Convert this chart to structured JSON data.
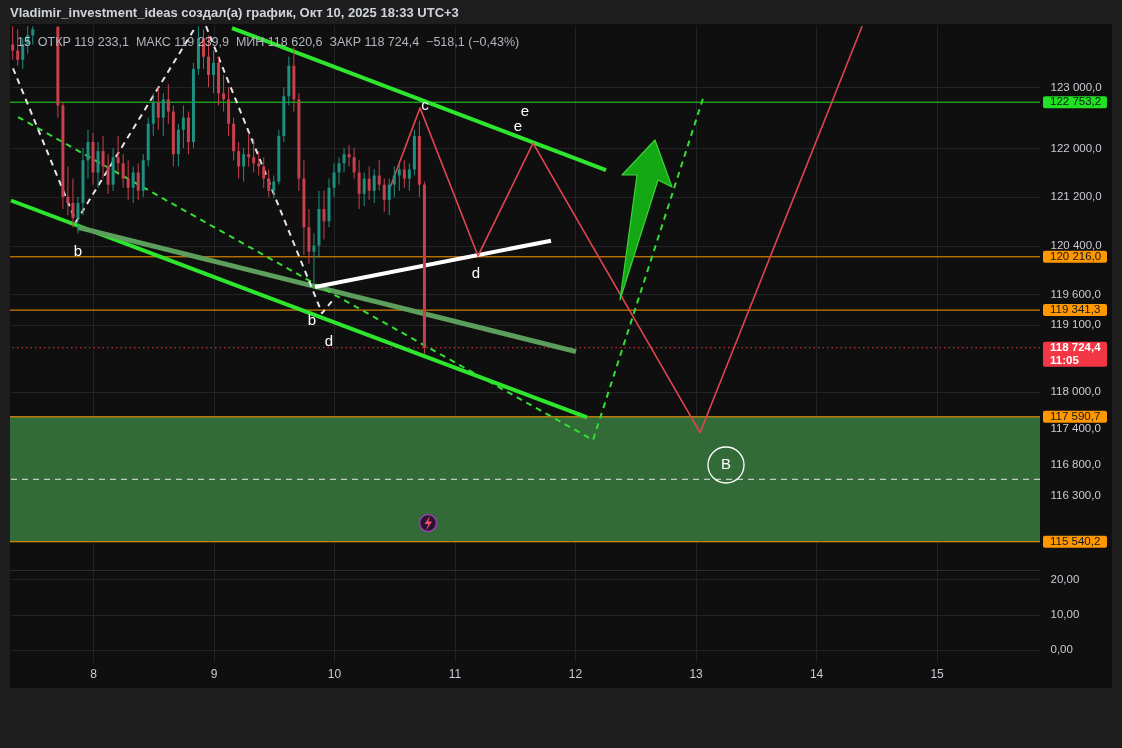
{
  "chart_data": [
    {
      "type": "candlestick",
      "title": "Vladimir_investment_ideas создал(а) график, Окт 10, 2025 18:33 UTC+3",
      "subtitle": "15  ОТКР 119 233,1  МАКС 119 239,9  МИН 118 620,6  ЗАКР 118 724,4  −518,1 (−0,43%)",
      "x": [
        "2025-10-07T08:00",
        "2025-10-07T09:00",
        "2025-10-07T10:00",
        "2025-10-07T11:00",
        "2025-10-07T12:00",
        "2025-10-07T17:00",
        "2025-10-07T18:00",
        "2025-10-07T19:00",
        "2025-10-07T20:00",
        "2025-10-07T21:00",
        "2025-10-07T22:00",
        "2025-10-07T23:00",
        "2025-10-08T00:00",
        "2025-10-08T01:00",
        "2025-10-08T02:00",
        "2025-10-08T03:00",
        "2025-10-08T04:00",
        "2025-10-08T05:00",
        "2025-10-08T06:00",
        "2025-10-08T07:00",
        "2025-10-08T08:00",
        "2025-10-08T09:00",
        "2025-10-08T10:00",
        "2025-10-08T11:00",
        "2025-10-08T12:00",
        "2025-10-08T13:00",
        "2025-10-08T14:00",
        "2025-10-08T15:00",
        "2025-10-08T16:00",
        "2025-10-08T17:00",
        "2025-10-08T18:00",
        "2025-10-08T19:00",
        "2025-10-08T20:00",
        "2025-10-08T21:00",
        "2025-10-08T22:00",
        "2025-10-08T23:00",
        "2025-10-09T00:00",
        "2025-10-09T01:00",
        "2025-10-09T02:00",
        "2025-10-09T03:00",
        "2025-10-09T04:00",
        "2025-10-09T05:00",
        "2025-10-09T06:00",
        "2025-10-09T07:00",
        "2025-10-09T08:00",
        "2025-10-09T09:00",
        "2025-10-09T10:00",
        "2025-10-09T11:00",
        "2025-10-09T12:00",
        "2025-10-09T13:00",
        "2025-10-09T14:00",
        "2025-10-09T15:00",
        "2025-10-09T16:00",
        "2025-10-09T17:00",
        "2025-10-09T18:00",
        "2025-10-09T19:00",
        "2025-10-09T20:00",
        "2025-10-09T21:00",
        "2025-10-09T22:00",
        "2025-10-09T23:00",
        "2025-10-10T00:00",
        "2025-10-10T01:00",
        "2025-10-10T02:00",
        "2025-10-10T03:00",
        "2025-10-10T04:00",
        "2025-10-10T05:00",
        "2025-10-10T06:00",
        "2025-10-10T07:00",
        "2025-10-10T08:00",
        "2025-10-10T09:00",
        "2025-10-10T10:00",
        "2025-10-10T11:00",
        "2025-10-10T12:00",
        "2025-10-10T13:00",
        "2025-10-10T14:00",
        "2025-10-10T15:00",
        "2025-10-10T16:00",
        "2025-10-10T17:00",
        "2025-10-10T18:00"
      ],
      "ohlc": [
        [
          123700,
          124000,
          123450,
          123600
        ],
        [
          123600,
          123950,
          123350,
          123450
        ],
        [
          123450,
          123800,
          123300,
          123700
        ],
        [
          123700,
          124000,
          123550,
          123850
        ],
        [
          123850,
          124000,
          123700,
          123950
        ],
        [
          123990,
          124000,
          122500,
          122700
        ],
        [
          122700,
          122750,
          121000,
          121200
        ],
        [
          121200,
          121700,
          120900,
          121100
        ],
        [
          121100,
          121500,
          120700,
          120850
        ],
        [
          120850,
          121200,
          120600,
          121100
        ],
        [
          121100,
          122000,
          120900,
          121800
        ],
        [
          121800,
          122300,
          121500,
          122100
        ],
        [
          122100,
          122250,
          121400,
          121600
        ],
        [
          121600,
          122100,
          121350,
          121950
        ],
        [
          121950,
          122200,
          121500,
          121700
        ],
        [
          121700,
          121900,
          121250,
          121400
        ],
        [
          121400,
          122000,
          121300,
          121850
        ],
        [
          121850,
          122200,
          121600,
          121750
        ],
        [
          121750,
          121900,
          121350,
          121500
        ],
        [
          121500,
          121800,
          121150,
          121350
        ],
        [
          121350,
          121700,
          121100,
          121600
        ],
        [
          121600,
          121750,
          121150,
          121300
        ],
        [
          121300,
          121900,
          121200,
          121800
        ],
        [
          121800,
          122500,
          121700,
          122400
        ],
        [
          122400,
          122900,
          122200,
          122750
        ],
        [
          122750,
          123000,
          122300,
          122500
        ],
        [
          122500,
          122900,
          122200,
          122800
        ],
        [
          122800,
          123050,
          122400,
          122600
        ],
        [
          122600,
          122700,
          121700,
          121900
        ],
        [
          121900,
          122400,
          121700,
          122300
        ],
        [
          122300,
          122700,
          122000,
          122500
        ],
        [
          122500,
          122600,
          121900,
          122100
        ],
        [
          122100,
          123400,
          122000,
          123300
        ],
        [
          123300,
          124000,
          123200,
          123800
        ],
        [
          123800,
          123950,
          123300,
          123500
        ],
        [
          123500,
          123850,
          123000,
          123200
        ],
        [
          123200,
          123600,
          122900,
          123400
        ],
        [
          123400,
          123500,
          122700,
          122900
        ],
        [
          122900,
          123200,
          122600,
          122800
        ],
        [
          122800,
          123000,
          122200,
          122400
        ],
        [
          122400,
          122500,
          121800,
          121950
        ],
        [
          121950,
          122100,
          121500,
          121700
        ],
        [
          121700,
          122000,
          121450,
          121900
        ],
        [
          121900,
          122250,
          121700,
          121850
        ],
        [
          121850,
          122150,
          121600,
          121750
        ],
        [
          121750,
          121950,
          121550,
          121700
        ],
        [
          121700,
          121850,
          121350,
          121500
        ],
        [
          121500,
          121650,
          121200,
          121300
        ],
        [
          121300,
          121550,
          121180,
          121450
        ],
        [
          121450,
          122300,
          121400,
          122200
        ],
        [
          122200,
          123000,
          122100,
          122850
        ],
        [
          122850,
          123500,
          122700,
          123350
        ],
        [
          123350,
          123650,
          122600,
          122800
        ],
        [
          122800,
          122900,
          121300,
          121500
        ],
        [
          121500,
          121800,
          120250,
          120700
        ],
        [
          120700,
          121000,
          120100,
          120300
        ],
        [
          120300,
          120600,
          119760,
          120400
        ],
        [
          120400,
          121300,
          120200,
          121000
        ],
        [
          121000,
          121300,
          120500,
          120800
        ],
        [
          120800,
          121500,
          120700,
          121350
        ],
        [
          121350,
          121750,
          121200,
          121600
        ],
        [
          121600,
          121850,
          121400,
          121750
        ],
        [
          121750,
          122000,
          121600,
          121900
        ],
        [
          121900,
          122050,
          121700,
          121850
        ],
        [
          121850,
          122000,
          121500,
          121600
        ],
        [
          121600,
          121800,
          121000,
          121250
        ],
        [
          121250,
          121600,
          121050,
          121500
        ],
        [
          121500,
          121700,
          121150,
          121300
        ],
        [
          121300,
          121650,
          121100,
          121550
        ],
        [
          121550,
          121800,
          121300,
          121400
        ],
        [
          121400,
          121500,
          120950,
          121150
        ],
        [
          121150,
          121500,
          120900,
          121400
        ],
        [
          121400,
          121700,
          121200,
          121550
        ],
        [
          121550,
          121750,
          121300,
          121650
        ],
        [
          121650,
          121800,
          121350,
          121500
        ],
        [
          121500,
          121750,
          121300,
          121650
        ],
        [
          121650,
          122300,
          121550,
          122200
        ],
        [
          122200,
          122450,
          121200,
          121400
        ],
        [
          121400,
          121450,
          118620.6,
          118724.4
        ]
      ],
      "colors": [
        "#c8404c",
        "#c8404c",
        "#1f8f80",
        "#1f8f80",
        "#1f8f80",
        "#c8404c",
        "#c8404c",
        "#c8404c",
        "#c8404c",
        "#1f8f80",
        "#1f8f80",
        "#1f8f80",
        "#c8404c",
        "#1f8f80",
        "#c8404c",
        "#c8404c",
        "#1f8f80",
        "#c8404c",
        "#c8404c",
        "#c8404c",
        "#1f8f80",
        "#c8404c",
        "#1f8f80",
        "#1f8f80",
        "#1f8f80",
        "#c8404c",
        "#1f8f80",
        "#c8404c",
        "#c8404c",
        "#1f8f80",
        "#1f8f80",
        "#c8404c",
        "#1f8f80",
        "#1f8f80",
        "#c8404c",
        "#c8404c",
        "#1f8f80",
        "#c8404c",
        "#c8404c",
        "#c8404c",
        "#c8404c",
        "#c8404c",
        "#1f8f80",
        "#c8404c",
        "#c8404c",
        "#c8404c",
        "#c8404c",
        "#c8404c",
        "#1f8f80",
        "#1f8f80",
        "#1f8f80",
        "#1f8f80",
        "#c8404c",
        "#c8404c",
        "#c8404c",
        "#c8404c",
        "#1f8f80",
        "#1f8f80",
        "#c8404c",
        "#1f8f80",
        "#1f8f80",
        "#1f8f80",
        "#1f8f80",
        "#c8404c",
        "#c8404c",
        "#c8404c",
        "#1f8f80",
        "#c8404c",
        "#1f8f80",
        "#c8404c",
        "#c8404c",
        "#1f8f80",
        "#1f8f80",
        "#1f8f80",
        "#c8404c",
        "#1f8f80",
        "#1f8f80",
        "#c8404c",
        "#c8404c"
      ],
      "series": [
        {
          "type": "line",
          "x": [
            "2025-10-09T03:41",
            "2025-10-12T06:10"
          ],
          "values": [
            123970,
            121640
          ],
          "color": "#2ee62e"
        },
        {
          "type": "line",
          "x": [
            "2025-10-07T07:40",
            "2025-10-12T02:23"
          ],
          "values": [
            121140,
            117580
          ],
          "color": "#2ee62e"
        },
        {
          "type": "line",
          "x": [
            "2025-10-07T21:01",
            "2025-10-12T00:12"
          ],
          "values": [
            120700,
            118660
          ],
          "color": "#5c9e5c"
        },
        {
          "type": "line",
          "x": [
            "2025-10-07T09:04",
            "2025-10-12T03:35",
            "2025-10-13T01:42"
          ],
          "values": [
            122510,
            117210,
            122870
          ],
          "color": "#33dd33",
          "line_style": "dashed"
        },
        {
          "type": "line",
          "x": [
            "2025-10-07T08:04",
            "2025-10-07T20:37",
            "2025-10-08T20:31"
          ],
          "values": [
            123310,
            120790,
            124000
          ],
          "color": "#e6e6e6",
          "line_style": "dashed"
        },
        {
          "type": "line",
          "x": [
            "2025-10-08T22:30",
            "2025-10-09T21:37",
            "2025-10-09T23:48"
          ],
          "values": [
            124000,
            119290,
            119510
          ],
          "color": "#e6e6e6",
          "line_style": "dashed"
        },
        {
          "type": "line",
          "x": [
            "2025-10-09T20:13",
            "2025-10-11T19:13"
          ],
          "values": [
            119720,
            120480
          ],
          "color": "#ffffff"
        },
        {
          "type": "line",
          "x": [
            "2025-10-10T11:09",
            "2025-10-10T17:08",
            "2025-10-11T04:41",
            "2025-10-11T15:38",
            "2025-10-13T00:54",
            "2025-10-14T09:10"
          ],
          "values": [
            121350,
            122660,
            120230,
            122080,
            117330,
            124000
          ],
          "color": "#e0454f"
        }
      ],
      "xlim": [
        "2025-10-07T07:28",
        "2025-10-15T20:36"
      ],
      "xticks": [
        {
          "value": "2025-10-08T00:00",
          "label": null
        },
        {
          "value": "2025-10-09T00:00",
          "label": null
        },
        {
          "value": "2025-10-10T00:00",
          "label": null
        },
        {
          "value": "2025-10-11T00:00",
          "label": null
        },
        {
          "value": "2025-10-12T00:00",
          "label": null
        },
        {
          "value": "2025-10-13T00:00",
          "label": null
        },
        {
          "value": "2025-10-14T00:00",
          "label": null
        },
        {
          "value": "2025-10-15T00:00",
          "label": null
        }
      ],
      "ylim": [
        115060,
        124020
      ],
      "yticks": [
        {
          "value": 123000,
          "label": "123 000,0"
        },
        {
          "value": 122000,
          "label": "122 000,0"
        },
        {
          "value": 121200,
          "label": "121 200,0"
        },
        {
          "value": 120400,
          "label": "120 400,0"
        },
        {
          "value": 119600,
          "label": "119 600,0"
        },
        {
          "value": 119100,
          "label": "119 100,0"
        },
        {
          "value": 118000,
          "label": "118 000,0"
        },
        {
          "value": 117400,
          "label": "117 400,0"
        },
        {
          "value": 116800,
          "label": "116 800,0"
        },
        {
          "value": 116300,
          "label": "116 300,0"
        }
      ],
      "tick_labels": "y",
      "grid": true,
      "bands": [
        {
          "axis": "y",
          "from": 115540.2,
          "to": 117590.7,
          "color": "#336b38"
        }
      ],
      "ref_lines": [
        {
          "axis": "y",
          "value": 116565,
          "color": "#e6e6e6",
          "line_style": "dashed"
        },
        {
          "axis": "y",
          "value": 122753.2,
          "label": "122 753,2",
          "color": "#22e022"
        },
        {
          "axis": "y",
          "value": 120216.0,
          "label": "120 216,0",
          "color": "#ff9800"
        },
        {
          "axis": "y",
          "value": 119341.3,
          "label": "119 341,3",
          "color": "#ff9800"
        },
        {
          "axis": "y",
          "value": 118724.4,
          "label": "118 724,4\n11:05",
          "color": "#f23645",
          "line_style": "dotted"
        },
        {
          "axis": "y",
          "value": 117590.7,
          "label": "117 590,7",
          "color": "#ff9800"
        },
        {
          "axis": "y",
          "value": 115540.2,
          "label": "115 540,2",
          "color": "#ff9800"
        }
      ],
      "annotations": [
        "b",
        "d",
        "d",
        "e",
        "e",
        {
          "text": "b",
          "x": "2025-10-09T19:37",
          "y": 119180
        },
        {
          "text": "c",
          "x": "2025-10-10T18:07",
          "y": 122710
        },
        {
          "text": "B",
          "x": "2025-10-13T06:04",
          "y": 116820
        }
      ]
    },
    {
      "type": "line",
      "xlim": [
        "2025-10-07T07:28",
        "2025-10-15T20:36"
      ],
      "xticks": [
        {
          "value": "2025-10-08T00:00",
          "label": "8"
        },
        {
          "value": "2025-10-09T00:00",
          "label": "9"
        },
        {
          "value": "2025-10-10T00:00",
          "label": "10"
        },
        {
          "value": "2025-10-11T00:00",
          "label": "11"
        },
        {
          "value": "2025-10-12T00:00",
          "label": "12"
        },
        {
          "value": "2025-10-13T00:00",
          "label": "13"
        },
        {
          "value": "2025-10-14T00:00",
          "label": "14"
        },
        {
          "value": "2025-10-15T00:00",
          "label": "15"
        }
      ],
      "ylim": [
        -3.4,
        22.3
      ],
      "yticks": [
        {
          "value": 20,
          "label": "20,00"
        },
        {
          "value": 10,
          "label": "10,00"
        },
        {
          "value": 0,
          "label": "0,00"
        }
      ],
      "grid": true
    }
  ]
}
